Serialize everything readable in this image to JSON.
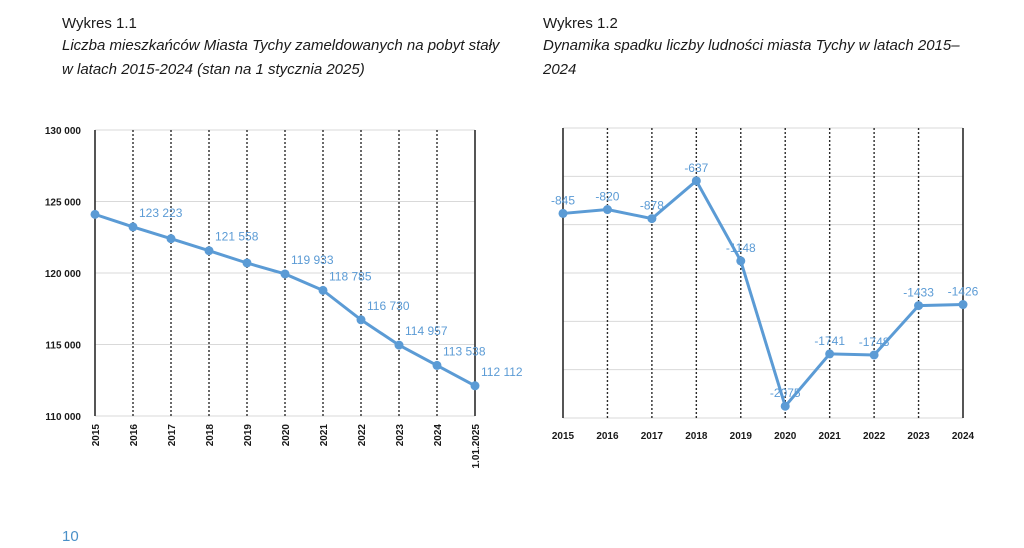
{
  "captions": {
    "chart1_number": "Wykres 1.1",
    "chart1_title": "Liczba mieszkańców Miasta Tychy zameldowanych na pobyt stały w latach 2015-2024 (stan na 1 stycznia 2025)",
    "chart2_number": "Wykres 1.2",
    "chart2_title": "Dynamika spadku liczby ludności miasta Tychy w latach 2015–2024"
  },
  "page_number": "10",
  "colors": {
    "series": "#5b9bd5",
    "grid": "#2b2b2b",
    "hgrid": "#d9d9d9"
  },
  "chart_data": [
    {
      "type": "line",
      "categories": [
        "2015",
        "2016",
        "2017",
        "2018",
        "2019",
        "2020",
        "2021",
        "2022",
        "2023",
        "2024",
        "1.01.2025"
      ],
      "values": [
        124100,
        123223,
        122400,
        121558,
        120700,
        119933,
        118785,
        116730,
        114957,
        113538,
        112112
      ],
      "data_labels": [
        "",
        "123 223",
        "",
        "121 558",
        "",
        "119 933",
        "118 785",
        "116 730",
        "114 957",
        "113 538",
        "112 112"
      ],
      "yticks": [
        "110 000",
        "115 000",
        "120 000",
        "125 000",
        "130 000"
      ],
      "ylim": [
        110000,
        130000
      ],
      "x_tick_orientation": "vertical",
      "grid": "vertical dotted"
    },
    {
      "type": "line",
      "categories": [
        "2015",
        "2016",
        "2017",
        "2018",
        "2019",
        "2020",
        "2021",
        "2022",
        "2023",
        "2024"
      ],
      "values": [
        -845,
        -820,
        -878,
        -637,
        -1148,
        -2075,
        -1741,
        -1748,
        -1433,
        -1426
      ],
      "data_labels": [
        "-845",
        "-820",
        "-878",
        "-637",
        "-1148",
        "-2075",
        "-1741",
        "-1748",
        "-1433",
        "-1426"
      ],
      "ylim": [
        -2150,
        -300
      ],
      "x_tick_orientation": "horizontal",
      "grid": "vertical dotted"
    }
  ]
}
